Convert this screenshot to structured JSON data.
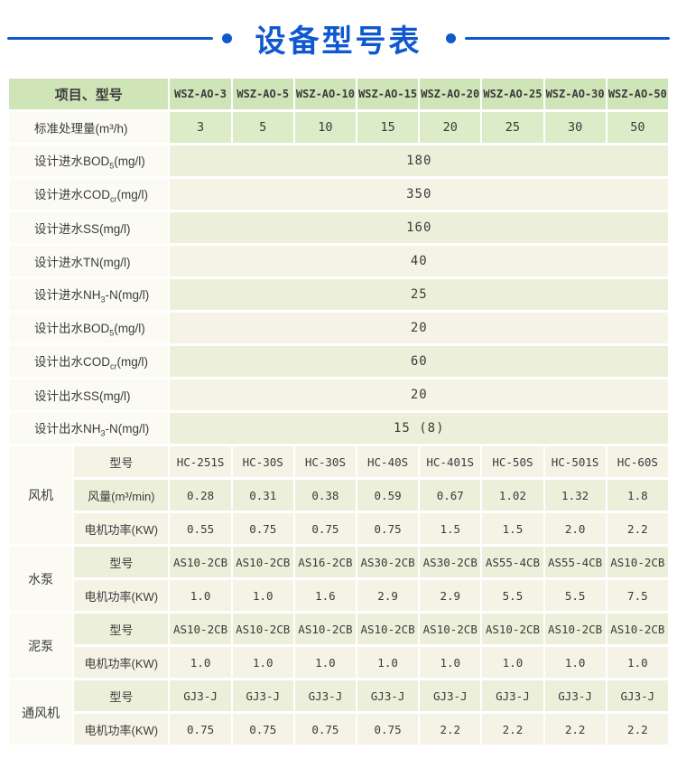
{
  "colors": {
    "accent": "#0f58d0",
    "header_green": "#cfe5b8",
    "capacity_green": "#dcecc8",
    "row_palegreen": "#ecf0da",
    "row_cream": "#f4f3e6",
    "label_bg": "#fbfbf3",
    "text": "#3b3b3b"
  },
  "chart_data": {
    "type": "table",
    "title": "设备型号表",
    "corner_label": "项目、型号",
    "columns": [
      "WSZ-AO-3",
      "WSZ-AO-5",
      "WSZ-AO-10",
      "WSZ-AO-15",
      "WSZ-AO-20",
      "WSZ-AO-25",
      "WSZ-AO-30",
      "WSZ-AO-50"
    ],
    "capacity_row": {
      "label": "标准处理量(m³/h)",
      "values": [
        "3",
        "5",
        "10",
        "15",
        "20",
        "25",
        "30",
        "50"
      ]
    },
    "design_rows": [
      {
        "label": [
          "设计进水BOD",
          {
            "sub": "5"
          },
          "(mg/l)"
        ],
        "value": "180",
        "shade": "palegreen"
      },
      {
        "label": [
          "设计进水COD",
          {
            "sub": "cr"
          },
          "(mg/l)"
        ],
        "value": "350",
        "shade": "cream"
      },
      {
        "label": "设计进水SS(mg/l)",
        "value": "160",
        "shade": "palegreen"
      },
      {
        "label": "设计进水TN(mg/l)",
        "value": "40",
        "shade": "cream"
      },
      {
        "label": [
          "设计进水NH",
          {
            "sub": "3"
          },
          "-N(mg/l)"
        ],
        "value": "25",
        "shade": "palegreen"
      },
      {
        "label": [
          "设计出水BOD",
          {
            "sub": "5"
          },
          "(mg/l)"
        ],
        "value": "20",
        "shade": "cream"
      },
      {
        "label": [
          "设计出水COD",
          {
            "sub": "cr"
          },
          "(mg/l)"
        ],
        "value": "60",
        "shade": "palegreen"
      },
      {
        "label": "设计出水SS(mg/l)",
        "value": "20",
        "shade": "cream"
      },
      {
        "label": [
          "设计出水NH",
          {
            "sub": "3"
          },
          "-N(mg/l)"
        ],
        "value": "15 (8)",
        "shade": "palegreen"
      }
    ],
    "equipment_sections": [
      {
        "name": "风机",
        "rows": [
          {
            "label": "型号",
            "values": [
              "HC-251S",
              "HC-30S",
              "HC-30S",
              "HC-40S",
              "HC-401S",
              "HC-50S",
              "HC-501S",
              "HC-60S"
            ],
            "shade": "cream"
          },
          {
            "label": "风量(m³/min)",
            "values": [
              "0.28",
              "0.31",
              "0.38",
              "0.59",
              "0.67",
              "1.02",
              "1.32",
              "1.8"
            ],
            "shade": "palegreen"
          },
          {
            "label": "电机功率(KW)",
            "values": [
              "0.55",
              "0.75",
              "0.75",
              "0.75",
              "1.5",
              "1.5",
              "2.0",
              "2.2"
            ],
            "shade": "cream"
          }
        ]
      },
      {
        "name": "水泵",
        "rows": [
          {
            "label": "型号",
            "values": [
              "AS10-2CB",
              "AS10-2CB",
              "AS16-2CB",
              "AS30-2CB",
              "AS30-2CB",
              "AS55-4CB",
              "AS55-4CB",
              "AS10-2CB"
            ],
            "shade": "palegreen"
          },
          {
            "label": "电机功率(KW)",
            "values": [
              "1.0",
              "1.0",
              "1.6",
              "2.9",
              "2.9",
              "5.5",
              "5.5",
              "7.5"
            ],
            "shade": "cream"
          }
        ]
      },
      {
        "name": "泥泵",
        "rows": [
          {
            "label": "型号",
            "values": [
              "AS10-2CB",
              "AS10-2CB",
              "AS10-2CB",
              "AS10-2CB",
              "AS10-2CB",
              "AS10-2CB",
              "AS10-2CB",
              "AS10-2CB"
            ],
            "shade": "palegreen"
          },
          {
            "label": "电机功率(KW)",
            "values": [
              "1.0",
              "1.0",
              "1.0",
              "1.0",
              "1.0",
              "1.0",
              "1.0",
              "1.0"
            ],
            "shade": "cream"
          }
        ]
      },
      {
        "name": "通风机",
        "rows": [
          {
            "label": "型号",
            "values": [
              "GJ3-J",
              "GJ3-J",
              "GJ3-J",
              "GJ3-J",
              "GJ3-J",
              "GJ3-J",
              "GJ3-J",
              "GJ3-J"
            ],
            "shade": "palegreen"
          },
          {
            "label": "电机功率(KW)",
            "values": [
              "0.75",
              "0.75",
              "0.75",
              "0.75",
              "2.2",
              "2.2",
              "2.2",
              "2.2"
            ],
            "shade": "cream"
          }
        ]
      }
    ]
  }
}
